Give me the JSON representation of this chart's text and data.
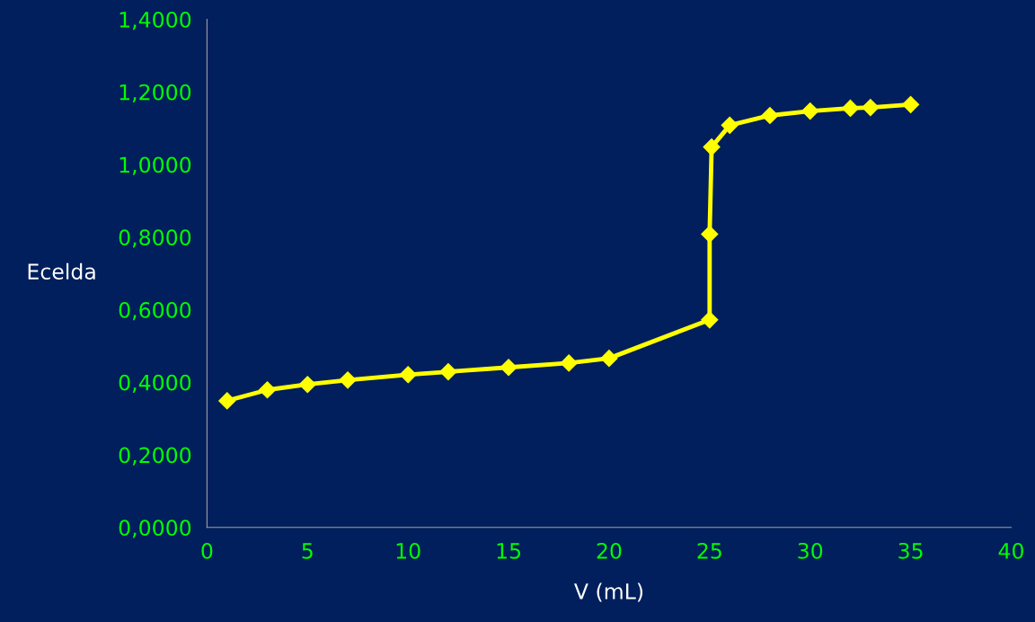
{
  "chart_data": {
    "type": "line",
    "xlabel": "V (mL)",
    "ylabel": "Ecelda",
    "x": [
      1,
      3,
      5,
      7,
      10,
      12,
      15,
      18,
      20,
      25,
      25,
      25.1,
      26,
      28,
      30,
      32,
      33,
      35
    ],
    "series": [
      {
        "color": "#ffff00",
        "values": [
          0.349,
          0.379,
          0.394,
          0.406,
          0.421,
          0.429,
          0.441,
          0.453,
          0.466,
          0.572,
          0.808,
          1.048,
          1.108,
          1.135,
          1.147,
          1.155,
          1.157,
          1.165
        ]
      }
    ],
    "xlim": [
      0,
      40
    ],
    "xticks": [
      0,
      5,
      10,
      15,
      20,
      25,
      30,
      35,
      40
    ],
    "ylim": [
      0,
      1.4
    ],
    "yticks": [
      {
        "value": 0,
        "label": "0,0000"
      },
      {
        "value": 0.2,
        "label": "0,2000"
      },
      {
        "value": 0.4,
        "label": "0,4000"
      },
      {
        "value": 0.6,
        "label": "0,6000"
      },
      {
        "value": 0.8,
        "label": "0,8000"
      },
      {
        "value": 1.0,
        "label": "1,0000"
      },
      {
        "value": 1.2,
        "label": "1,2000"
      },
      {
        "value": 1.4,
        "label": "1,4000"
      }
    ],
    "marker": "diamond",
    "line_style": "solid",
    "grid": false,
    "legend": false
  }
}
